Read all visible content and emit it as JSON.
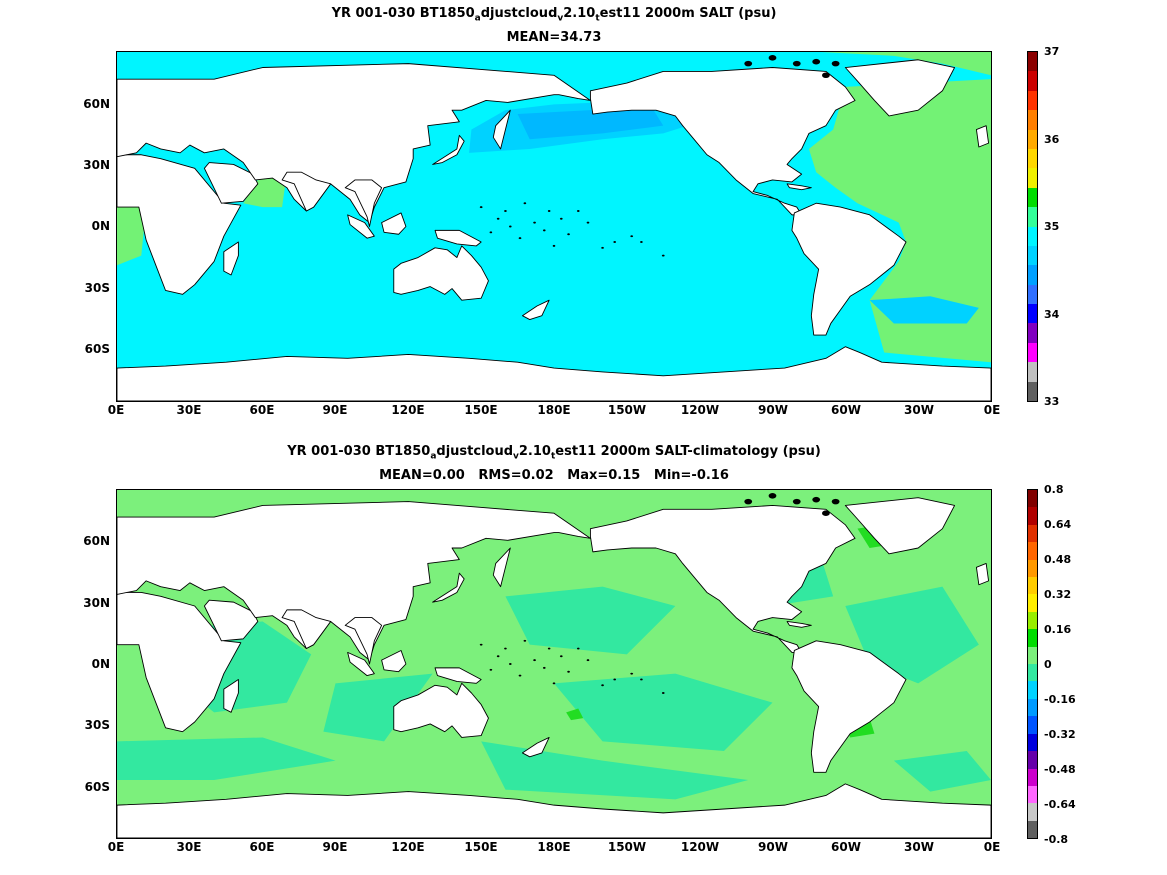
{
  "colors": {
    "ocean_mean": "#00f5ff",
    "ocean_mid": "#00d2ff",
    "ocean_dark": "#00b8ff",
    "salty": "#73f275",
    "salty_dark": "#5ae65a",
    "anom_base": "#7cf07c",
    "anom_light": "#33e8a0",
    "land": "#ffffff",
    "coast": "#000000"
  },
  "panels": [
    {
      "id": "salt",
      "title_pre": "YR 001-030 BT1850",
      "title_sub1": "a",
      "title_mid": "djustcloud",
      "title_sub2": "v",
      "title_mid2": "2.10",
      "title_sub3": "t",
      "title_post": "est11 2000m SALT (psu)",
      "subtitle": "MEAN=34.73",
      "colorbar_ticks": [
        "37",
        "36",
        "35",
        "34",
        "33"
      ],
      "colorbar_colors": [
        "#8b0000",
        "#cc0000",
        "#ff3300",
        "#ff7f00",
        "#ffaa00",
        "#ffd700",
        "#f0f000",
        "#00dd00",
        "#33ff99",
        "#00f5ff",
        "#00d2ff",
        "#00a0ff",
        "#3070ff",
        "#0000ff",
        "#8000c0",
        "#ff00ff",
        "#c0c0c0",
        "#606060"
      ]
    },
    {
      "id": "anom",
      "title_pre": "YR 001-030 BT1850",
      "title_sub1": "a",
      "title_mid": "djustcloud",
      "title_sub2": "v",
      "title_mid2": "2.10",
      "title_sub3": "t",
      "title_post": "est11 2000m SALT-climatology (psu)",
      "subtitle": "MEAN=0.00   RMS=0.02   Max=0.15   Min=-0.16",
      "colorbar_ticks": [
        "0.8",
        "0.64",
        "0.48",
        "0.32",
        "0.16",
        "0",
        "-0.16",
        "-0.32",
        "-0.48",
        "-0.64",
        "-0.8"
      ],
      "colorbar_colors": [
        "#800000",
        "#b00000",
        "#e03000",
        "#ff6600",
        "#ff9900",
        "#ffcc00",
        "#ffee00",
        "#99ee00",
        "#00dd00",
        "#7cf07c",
        "#33e8a0",
        "#00d2ff",
        "#009bff",
        "#0055ff",
        "#0000dd",
        "#6600aa",
        "#cc00cc",
        "#ff66ff",
        "#c8c8c8",
        "#606060"
      ]
    }
  ],
  "axes": {
    "x_ticks": [
      "0E",
      "30E",
      "60E",
      "90E",
      "120E",
      "150E",
      "180E",
      "150W",
      "120W",
      "90W",
      "60W",
      "30W",
      "0E"
    ],
    "y_ticks": [
      "60N",
      "30N",
      "0N",
      "30S",
      "60S"
    ]
  }
}
